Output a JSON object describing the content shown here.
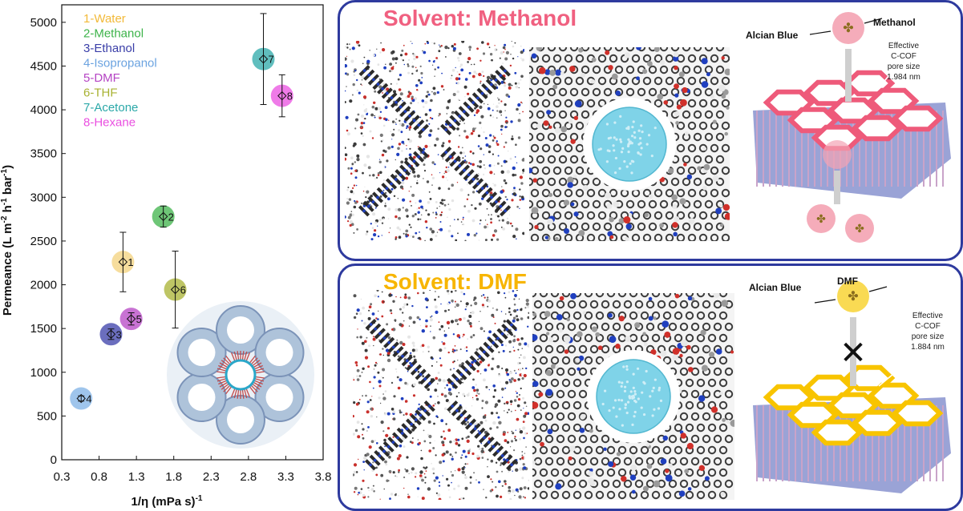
{
  "chart_data": {
    "type": "scatter",
    "xlabel": "1/η (mPa s)",
    "xlabel_sup": "-1",
    "ylabel_parts": [
      "Permeance (L m",
      "-2",
      " h",
      "-1",
      " bar",
      "-1",
      ")"
    ],
    "xlim": [
      0.3,
      3.8
    ],
    "ylim": [
      0,
      5200
    ],
    "xticks": [
      "0.3",
      "0.8",
      "1.3",
      "1.8",
      "2.3",
      "2.8",
      "3.3",
      "3.8"
    ],
    "yticks": [
      "0",
      "500",
      "1000",
      "1500",
      "2000",
      "2500",
      "3000",
      "3500",
      "4000",
      "4500",
      "5000"
    ],
    "legend_position": "top-left",
    "points": [
      {
        "label": "1",
        "legend": "1-Water",
        "x": 1.12,
        "y": 2260,
        "err": 340,
        "color": "#f3d27c",
        "text_color": "#f2b938"
      },
      {
        "label": "2",
        "legend": "2-Methanol",
        "x": 1.66,
        "y": 2780,
        "err": 120,
        "color": "#3db34a",
        "text_color": "#3db34a"
      },
      {
        "label": "3",
        "legend": "3-Ethanol",
        "x": 0.96,
        "y": 1435,
        "err": 60,
        "color": "#3a3ea8",
        "text_color": "#3a3ea8"
      },
      {
        "label": "4",
        "legend": "4-Isopropanol",
        "x": 0.56,
        "y": 700,
        "err": 30,
        "color": "#7fb2e5",
        "text_color": "#6ba3e0"
      },
      {
        "label": "5",
        "legend": "5-DMF",
        "x": 1.23,
        "y": 1610,
        "err": 70,
        "color": "#b544c4",
        "text_color": "#b544c4"
      },
      {
        "label": "6",
        "legend": "6-THF",
        "x": 1.82,
        "y": 1945,
        "err": 440,
        "color": "#a8b232",
        "text_color": "#a8b232"
      },
      {
        "label": "7",
        "legend": "7-Acetone",
        "x": 3.0,
        "y": 4580,
        "err": 520,
        "color": "#2ba8a8",
        "text_color": "#2ba8a8"
      },
      {
        "label": "8",
        "legend": "8-Hexane",
        "x": 3.25,
        "y": 4160,
        "err": 240,
        "color": "#ea4fe0",
        "text_color": "#ea4fe0"
      }
    ]
  },
  "panels": {
    "methanol": {
      "title": "Solvent: Methanol",
      "title_color": "#f06080",
      "solute_label": "Alcian Blue",
      "solvent_label": "Methanol",
      "note": [
        "Effective",
        "C-COF",
        "pore size",
        "1.984 nm"
      ],
      "ring_color": "#ee5a7a",
      "bubble_color": "#f4a3b3"
    },
    "dmf": {
      "title": "Solvent: DMF",
      "title_color": "#f7b500",
      "solute_label": "Alcian Blue",
      "solvent_label": "DMF",
      "note": [
        "Effective",
        "C-COF",
        "pore size",
        "1.884 nm"
      ],
      "ring_color": "#f8c400",
      "bubble_color": "#f8d640"
    }
  }
}
